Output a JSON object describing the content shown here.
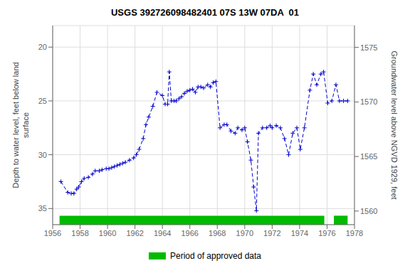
{
  "chart_data": {
    "type": "line",
    "title": "USGS 392726098482401 07S 13W 07DA  01",
    "y_label": "Depth to water level, feet below land\nsurface",
    "y2_label": "Groundwater level above NGVD 1929, feet",
    "x": [
      1956.6,
      1957.1,
      1957.35,
      1957.55,
      1957.75,
      1957.9,
      1958.1,
      1958.3,
      1958.6,
      1958.9,
      1959.1,
      1959.4,
      1959.6,
      1959.9,
      1960.1,
      1960.3,
      1960.5,
      1960.7,
      1960.9,
      1961.1,
      1961.3,
      1961.6,
      1961.9,
      1962.1,
      1962.3,
      1962.6,
      1962.8,
      1963.0,
      1963.3,
      1963.6,
      1964.0,
      1964.2,
      1964.38,
      1964.5,
      1964.65,
      1964.85,
      1965.0,
      1965.2,
      1965.4,
      1965.6,
      1965.8,
      1966.0,
      1966.2,
      1966.4,
      1966.6,
      1966.8,
      1967.0,
      1967.3,
      1967.5,
      1967.7,
      1967.9,
      1968.2,
      1968.5,
      1968.7,
      1969.0,
      1969.3,
      1969.5,
      1969.8,
      1970.0,
      1970.2,
      1970.45,
      1970.65,
      1970.85,
      1971.0,
      1971.3,
      1971.6,
      1971.85,
      1972.0,
      1972.3,
      1972.6,
      1972.9,
      1973.2,
      1973.5,
      1973.8,
      1974.05,
      1974.35,
      1974.75,
      1975.0,
      1975.25,
      1975.55,
      1975.75,
      1976.05,
      1976.35,
      1976.65,
      1976.9,
      1977.2,
      1977.5
    ],
    "values": [
      32.5,
      33.5,
      33.6,
      33.6,
      33.2,
      33.0,
      32.5,
      32.2,
      32.1,
      31.8,
      31.5,
      31.5,
      31.4,
      31.3,
      31.3,
      31.2,
      31.1,
      31.0,
      30.9,
      30.8,
      30.7,
      30.5,
      30.3,
      30.0,
      29.5,
      28.5,
      27.2,
      26.5,
      25.5,
      24.2,
      24.5,
      25.3,
      25.3,
      22.3,
      25.0,
      25.0,
      25.0,
      24.8,
      24.6,
      24.3,
      24.1,
      24.0,
      23.9,
      24.2,
      23.7,
      23.7,
      23.8,
      23.5,
      23.7,
      23.3,
      23.2,
      27.5,
      27.2,
      27.2,
      27.8,
      28.0,
      27.5,
      27.7,
      27.5,
      28.8,
      30.5,
      33.0,
      35.2,
      28.0,
      27.5,
      27.5,
      27.3,
      27.5,
      27.3,
      27.5,
      28.5,
      30.0,
      28.0,
      27.5,
      29.5,
      27.5,
      24.0,
      22.5,
      23.5,
      22.5,
      22.3,
      25.2,
      25.0,
      23.5,
      25.0,
      25.0,
      25.0
    ],
    "color": "#0000cc",
    "marker": "plus",
    "line_style": "dashed",
    "xlim": [
      1956,
      1978
    ],
    "xticks": [
      1956,
      1958,
      1960,
      1962,
      1964,
      1966,
      1968,
      1970,
      1972,
      1974,
      1976,
      1978
    ],
    "ylim": [
      36.5,
      18.0
    ],
    "yticks": [
      20,
      25,
      30,
      35
    ],
    "y2lim": [
      1558.75,
      1577.0
    ],
    "y2ticks": [
      1560,
      1565,
      1570,
      1575
    ],
    "grid": true,
    "legend": "bottom",
    "approved_periods": {
      "name": "Period of approved data",
      "color": "#00bb00",
      "ranges": [
        [
          1956.5,
          1975.8
        ],
        [
          1976.5,
          1977.5
        ]
      ]
    }
  }
}
